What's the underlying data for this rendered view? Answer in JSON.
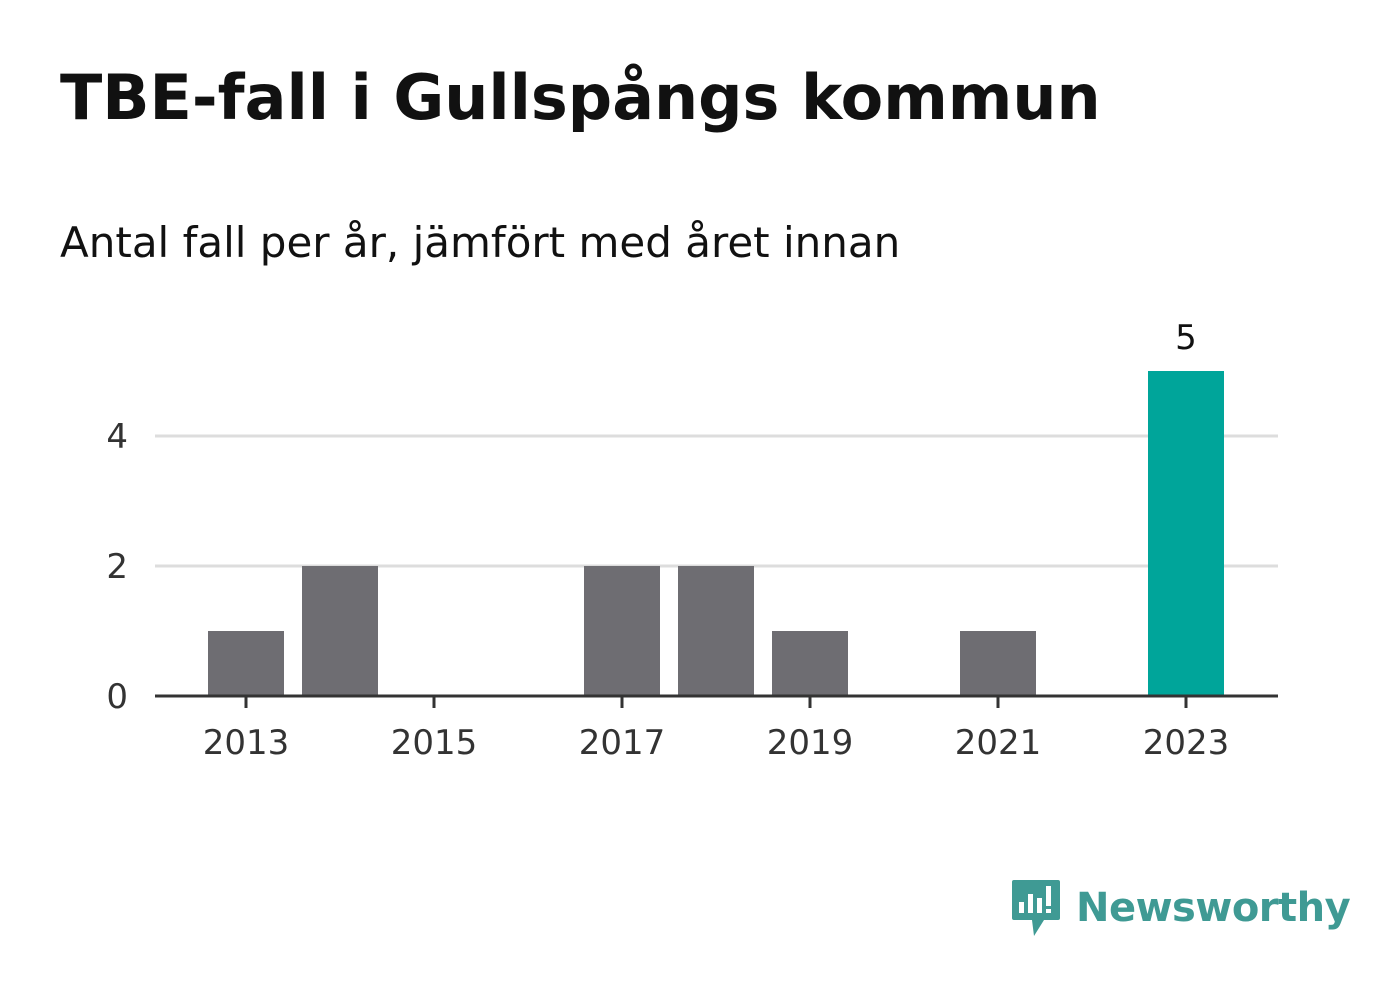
{
  "header": {
    "title": "TBE-fall i Gullspångs kommun",
    "subtitle": "Antal fall per år, jämfört med året innan"
  },
  "chart_data": {
    "type": "bar",
    "title": "TBE-fall i Gullspångs kommun",
    "subtitle": "Antal fall per år, jämfört med året innan",
    "categories": [
      2013,
      2014,
      2015,
      2016,
      2017,
      2018,
      2019,
      2020,
      2021,
      2022,
      2023
    ],
    "values": [
      1,
      2,
      0,
      0,
      2,
      2,
      1,
      0,
      1,
      0,
      5
    ],
    "highlight_category": 2023,
    "highlight_label": "5",
    "x_ticks": [
      "2013",
      "2015",
      "2017",
      "2019",
      "2021",
      "2023"
    ],
    "y_ticks": [
      0,
      2,
      4
    ],
    "ylim": [
      0,
      5
    ],
    "grid": true,
    "colors": {
      "bar": "#6e6d72",
      "highlight": "#00a59a",
      "grid": "#dddddd",
      "axis": "#333333"
    }
  },
  "branding": {
    "logo_text": "Newsworthy",
    "logo_icon": "newsworthy-bar-chart-icon",
    "logo_color": "#3f9a94"
  }
}
